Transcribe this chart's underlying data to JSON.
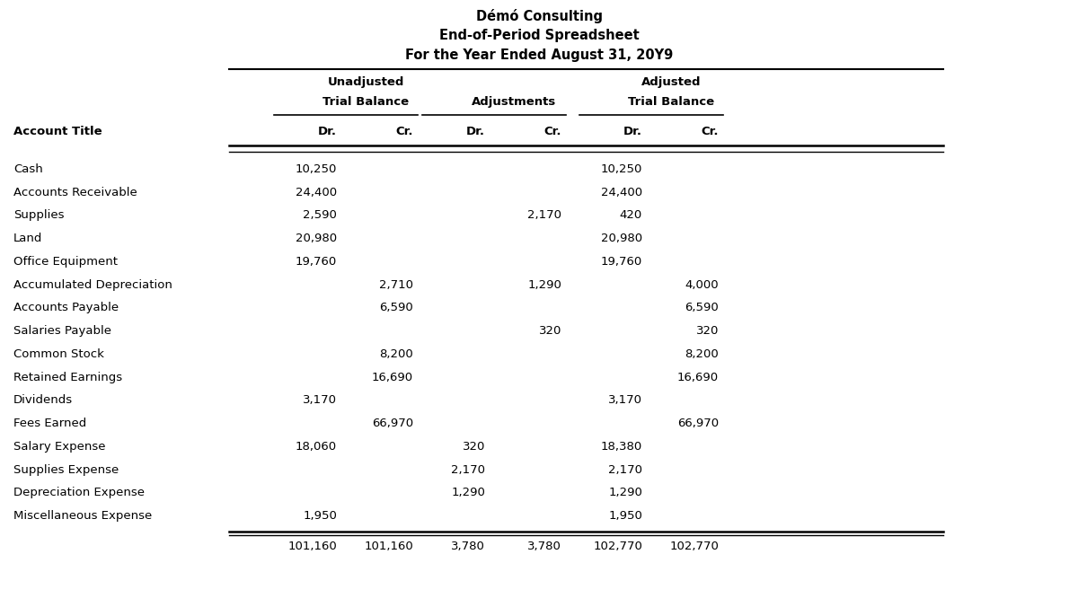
{
  "title1": "Démó Consulting",
  "title2": "End-of-Period Spreadsheet",
  "title3": "For the Year Ended August 31, 20Y9",
  "col_headers_row3": [
    "Account Title",
    "Dr.",
    "Cr.",
    "Dr.",
    "Cr.",
    "Dr.",
    "Cr."
  ],
  "rows": [
    [
      "Cash",
      "10,250",
      "",
      "",
      "",
      "10,250",
      ""
    ],
    [
      "Accounts Receivable",
      "24,400",
      "",
      "",
      "",
      "24,400",
      ""
    ],
    [
      "Supplies",
      "2,590",
      "",
      "",
      "2,170",
      "420",
      ""
    ],
    [
      "Land",
      "20,980",
      "",
      "",
      "",
      "20,980",
      ""
    ],
    [
      "Office Equipment",
      "19,760",
      "",
      "",
      "",
      "19,760",
      ""
    ],
    [
      "Accumulated Depreciation",
      "",
      "2,710",
      "",
      "1,290",
      "",
      "4,000"
    ],
    [
      "Accounts Payable",
      "",
      "6,590",
      "",
      "",
      "",
      "6,590"
    ],
    [
      "Salaries Payable",
      "",
      "",
      "",
      "320",
      "",
      "320"
    ],
    [
      "Common Stock",
      "",
      "8,200",
      "",
      "",
      "",
      "8,200"
    ],
    [
      "Retained Earnings",
      "",
      "16,690",
      "",
      "",
      "",
      "16,690"
    ],
    [
      "Dividends",
      "3,170",
      "",
      "",
      "",
      "3,170",
      ""
    ],
    [
      "Fees Earned",
      "",
      "66,970",
      "",
      "",
      "",
      "66,970"
    ],
    [
      "Salary Expense",
      "18,060",
      "",
      "320",
      "",
      "18,380",
      ""
    ],
    [
      "Supplies Expense",
      "",
      "",
      "2,170",
      "",
      "2,170",
      ""
    ],
    [
      "Depreciation Expense",
      "",
      "",
      "1,290",
      "",
      "1,290",
      ""
    ],
    [
      "Miscellaneous Expense",
      "1,950",
      "",
      "",
      "",
      "1,950",
      ""
    ]
  ],
  "totals": [
    "",
    "101,160",
    "101,160",
    "3,780",
    "3,780",
    "102,770",
    "102,770"
  ],
  "background_color": "#ffffff",
  "text_color": "#000000",
  "font_size": 9.5,
  "title_font_size": 10.5
}
